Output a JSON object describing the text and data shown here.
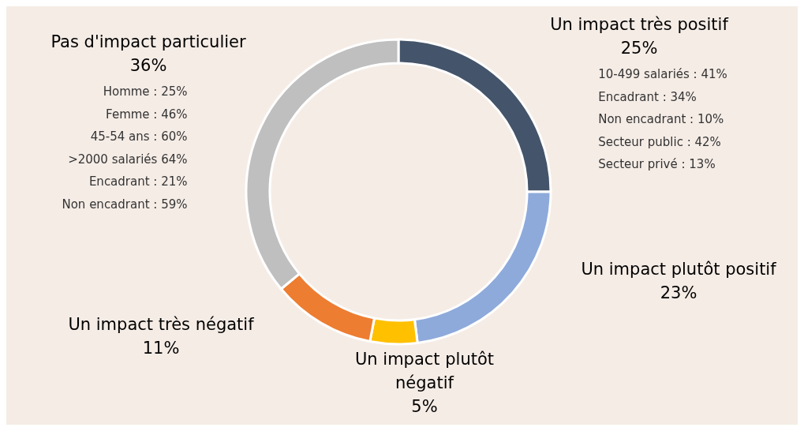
{
  "chart_data": {
    "type": "donut",
    "categories": [
      "Un impact très positif",
      "Un impact plutôt positif",
      "Un impact plutôt négatif",
      "Un impact très négatif",
      "Pas d'impact particulier"
    ],
    "values": [
      25,
      23,
      5,
      11,
      36
    ],
    "value_labels": [
      "25%",
      "23%",
      "5%",
      "11%",
      "36%"
    ],
    "colors": [
      "#44546a",
      "#8eaadb",
      "#ffc000",
      "#ed7d31",
      "#bfbfbf"
    ],
    "annotations": [
      {
        "text": "10-499 salariés : 41%",
        "x": "Un impact très positif"
      },
      {
        "text": "Encadrant : 34%",
        "x": "Un impact très positif"
      },
      {
        "text": "Non encadrant : 10%",
        "x": "Un impact très positif"
      },
      {
        "text": "Secteur public : 42%",
        "x": "Un impact très positif"
      },
      {
        "text": "Secteur privé : 13%",
        "x": "Un impact très positif"
      },
      {
        "text": "Homme : 25%",
        "x": "Pas d'impact particulier"
      },
      {
        "text": "Femme : 46%",
        "x": "Pas d'impact particulier"
      },
      {
        "text": "45-54 ans : 60%",
        "x": "Pas d'impact particulier"
      },
      {
        "text": ">2000 salariés 64%",
        "x": "Pas d'impact particulier"
      },
      {
        "text": "Encadrant : 21%",
        "x": "Pas d'impact particulier"
      },
      {
        "text": "Non encadrant : 59%",
        "x": "Pas d'impact particulier"
      }
    ]
  }
}
